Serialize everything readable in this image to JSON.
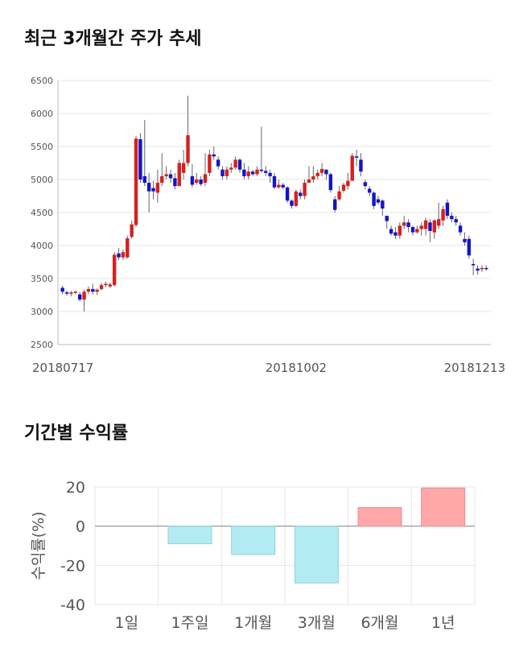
{
  "sections": {
    "price_title": "최근 3개월간 주가 추세",
    "return_title": "기간별 수익률"
  },
  "colors": {
    "up": "#d62020",
    "down": "#1414c8",
    "positive_bar": "#ffa7a9",
    "negative_bar": "#b3ebf3",
    "grid": "#e6e6e6"
  },
  "chart_data": [
    {
      "type": "candlestick",
      "title": "최근 3개월간 주가 추세",
      "ylim": [
        2500,
        6500
      ],
      "yticks": [
        2500,
        3000,
        3500,
        4000,
        4500,
        5000,
        5500,
        6000,
        6500
      ],
      "xtick_labels": [
        {
          "index": 0,
          "label": "20180717"
        },
        {
          "index": 54,
          "label": "20181002"
        },
        {
          "index": 103,
          "label": "20181213"
        }
      ],
      "candles": [
        [
          3360,
          3300,
          3390,
          3260
        ],
        [
          3290,
          3270,
          3320,
          3240
        ],
        [
          3270,
          3290,
          3310,
          3230
        ],
        [
          3290,
          3300,
          3320,
          3260
        ],
        [
          3260,
          3180,
          3300,
          3150
        ],
        [
          3180,
          3300,
          3330,
          3000
        ],
        [
          3300,
          3340,
          3380,
          3260
        ],
        [
          3340,
          3300,
          3420,
          3260
        ],
        [
          3300,
          3330,
          3350,
          3250
        ],
        [
          3340,
          3400,
          3430,
          3320
        ],
        [
          3400,
          3420,
          3450,
          3370
        ],
        [
          3380,
          3410,
          3440,
          3360
        ],
        [
          3400,
          3860,
          3900,
          3380
        ],
        [
          3880,
          3820,
          3960,
          3780
        ],
        [
          3820,
          3900,
          3940,
          3780
        ],
        [
          3820,
          4110,
          4150,
          3800
        ],
        [
          4130,
          4320,
          4380,
          4100
        ],
        [
          4310,
          5620,
          5660,
          4280
        ],
        [
          5610,
          5000,
          5700,
          4950
        ],
        [
          5050,
          4950,
          5900,
          4900
        ],
        [
          4950,
          4820,
          5100,
          4500
        ],
        [
          4870,
          4820,
          4980,
          4700
        ],
        [
          4800,
          4950,
          5150,
          4650
        ],
        [
          4950,
          5050,
          5400,
          4900
        ],
        [
          5050,
          5080,
          5200,
          5000
        ],
        [
          5080,
          5020,
          5150,
          4950
        ],
        [
          5020,
          4900,
          5100,
          4850
        ],
        [
          4900,
          5250,
          5300,
          4900
        ],
        [
          5100,
          5250,
          5450,
          5000
        ],
        [
          5250,
          5670,
          6270,
          5200
        ],
        [
          5050,
          4920,
          5230,
          4880
        ],
        [
          4950,
          5000,
          5100,
          4920
        ],
        [
          5000,
          4930,
          5050,
          4900
        ],
        [
          4950,
          5080,
          5400,
          4900
        ],
        [
          5100,
          5380,
          5450,
          5050
        ],
        [
          5380,
          5350,
          5500,
          5300
        ],
        [
          5300,
          5200,
          5350,
          5150
        ],
        [
          5150,
          5050,
          5200,
          5000
        ],
        [
          5050,
          5150,
          5200,
          5000
        ],
        [
          5150,
          5180,
          5250,
          5100
        ],
        [
          5180,
          5300,
          5350,
          5150
        ],
        [
          5300,
          5150,
          5320,
          5100
        ],
        [
          5150,
          5050,
          5250,
          5000
        ],
        [
          5050,
          5120,
          5200,
          5000
        ],
        [
          5120,
          5080,
          5150,
          5050
        ],
        [
          5080,
          5150,
          5200,
          5050
        ],
        [
          5150,
          5130,
          5800,
          5100
        ],
        [
          5130,
          5100,
          5200,
          5050
        ],
        [
          5100,
          5050,
          5150,
          4950
        ],
        [
          5050,
          4880,
          5100,
          4850
        ],
        [
          4880,
          4920,
          5000,
          4860
        ],
        [
          4920,
          4880,
          4950,
          4850
        ],
        [
          4880,
          4680,
          4900,
          4650
        ],
        [
          4680,
          4600,
          4700,
          4560
        ],
        [
          4600,
          4820,
          4850,
          4580
        ],
        [
          4800,
          4750,
          4850,
          4700
        ],
        [
          4750,
          4950,
          5000,
          4700
        ],
        [
          4950,
          5000,
          5200,
          4950
        ],
        [
          5000,
          5050,
          5200,
          4950
        ],
        [
          5050,
          5100,
          5150,
          5000
        ],
        [
          5100,
          5160,
          5250,
          5050
        ],
        [
          5150,
          5080,
          5150,
          5000
        ],
        [
          5080,
          4840,
          5100,
          4800
        ],
        [
          4700,
          4540,
          4750,
          4500
        ],
        [
          4700,
          4820,
          4900,
          4680
        ],
        [
          4830,
          4920,
          4950,
          4800
        ],
        [
          4900,
          4980,
          5100,
          4850
        ],
        [
          4980,
          5360,
          5400,
          5000
        ],
        [
          5350,
          5330,
          5450,
          5200
        ],
        [
          5300,
          5120,
          5400,
          5050
        ],
        [
          4960,
          4900,
          5000,
          4850
        ],
        [
          4860,
          4800,
          4900,
          4750
        ],
        [
          4800,
          4600,
          4820,
          4550
        ],
        [
          4700,
          4650,
          4750,
          4620
        ],
        [
          4680,
          4560,
          4700,
          4450
        ],
        [
          4450,
          4370,
          4450,
          4250
        ],
        [
          4250,
          4180,
          4300,
          4150
        ],
        [
          4200,
          4150,
          4280,
          4100
        ],
        [
          4150,
          4300,
          4350,
          4100
        ],
        [
          4300,
          4350,
          4450,
          4250
        ],
        [
          4350,
          4280,
          4400,
          4200
        ],
        [
          4280,
          4200,
          4300,
          4150
        ],
        [
          4200,
          4250,
          4300,
          4180
        ],
        [
          4250,
          4300,
          4350,
          4150
        ],
        [
          4250,
          4380,
          4420,
          4150
        ],
        [
          4350,
          4220,
          4400,
          4050
        ],
        [
          4200,
          4380,
          4400,
          4100
        ],
        [
          4300,
          4400,
          4650,
          4250
        ],
        [
          4380,
          4550,
          4600,
          4300
        ],
        [
          4650,
          4450,
          4700,
          4400
        ],
        [
          4450,
          4400,
          4500,
          4350
        ],
        [
          4400,
          4350,
          4450,
          4300
        ],
        [
          4300,
          4200,
          4350,
          4150
        ],
        [
          4100,
          4050,
          4200,
          4000
        ],
        [
          4100,
          3850,
          4150,
          3800
        ],
        [
          3720,
          3700,
          3800,
          3550
        ],
        [
          3650,
          3620,
          3700,
          3560
        ],
        [
          3640,
          3660,
          3700,
          3600
        ],
        [
          3660,
          3650,
          3700,
          3620
        ]
      ]
    },
    {
      "type": "bar",
      "title": "기간별 수익률",
      "ylabel": "수익률(%)",
      "categories": [
        "1일",
        "1주일",
        "1개월",
        "3개월",
        "6개월",
        "1년"
      ],
      "values": [
        0,
        -9,
        -14.5,
        -29,
        9.5,
        19.5
      ],
      "ylim": [
        -40,
        20
      ],
      "yticks": [
        -40,
        -20,
        0,
        20
      ]
    }
  ]
}
